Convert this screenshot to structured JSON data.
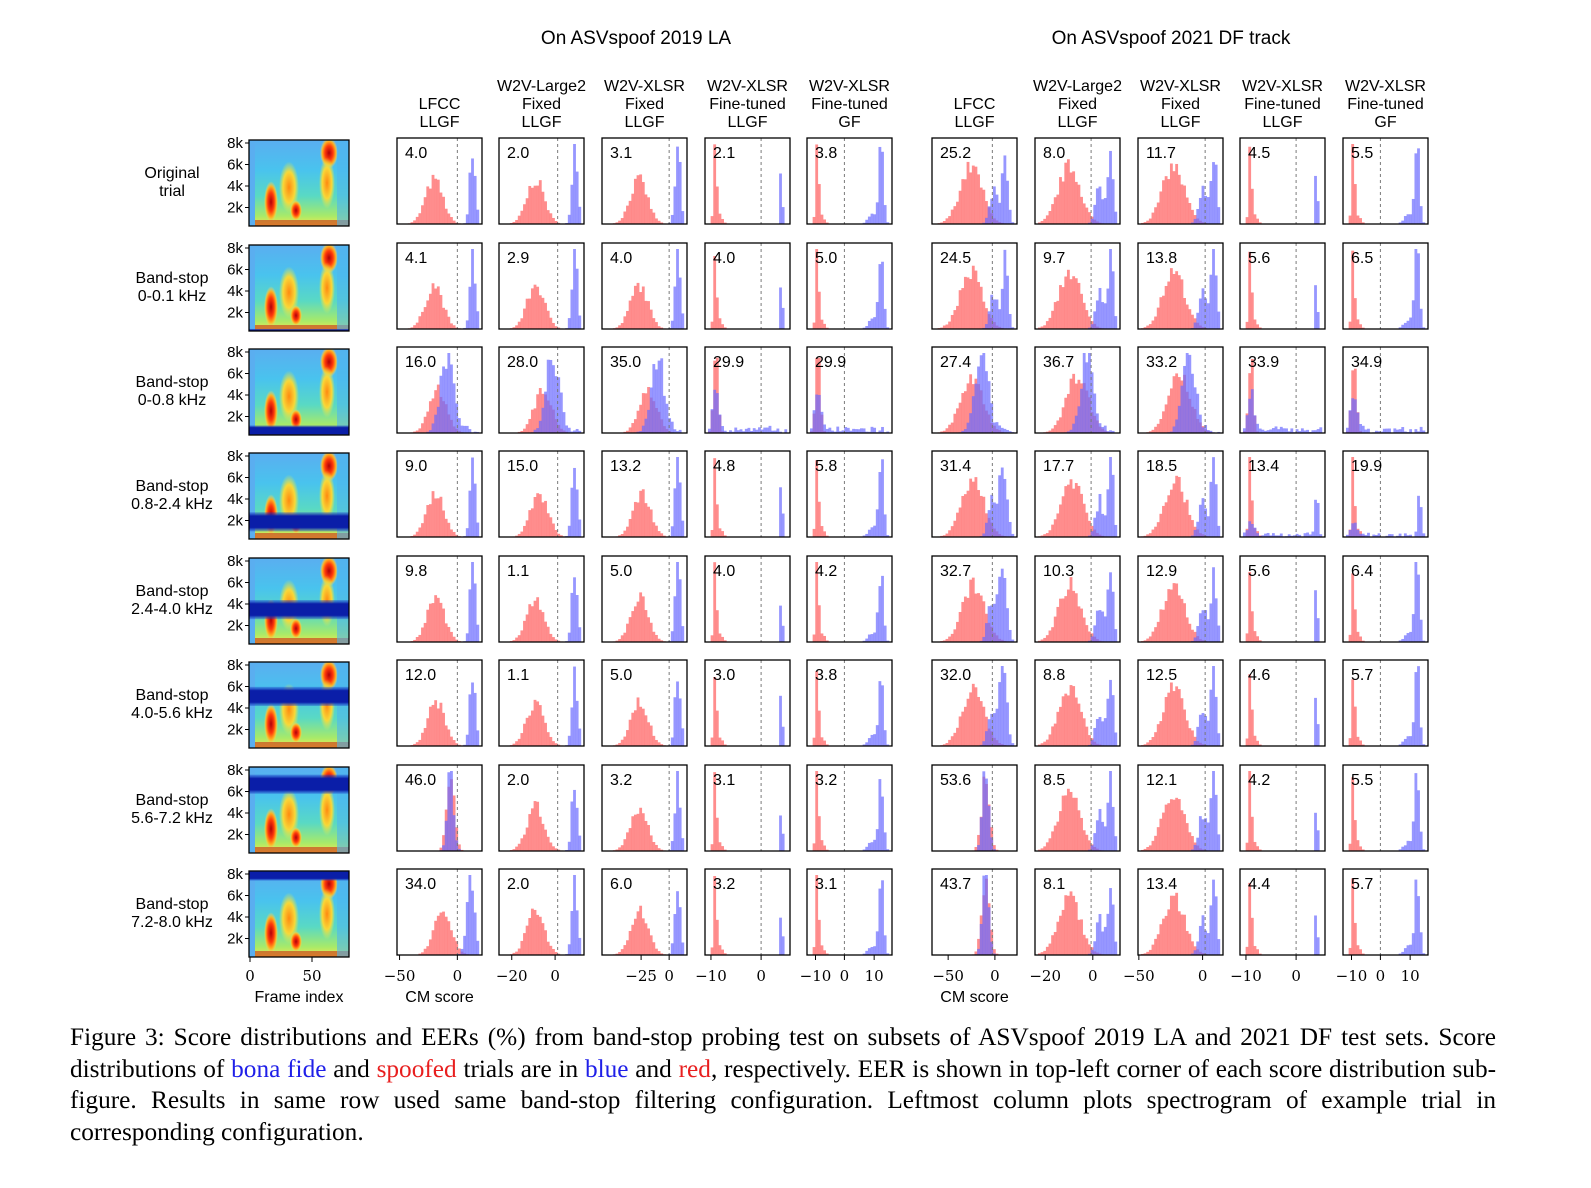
{
  "chart_data": {
    "type": "histogram-grid",
    "groups": [
      {
        "title": "On ASVspoof 2019 LA"
      },
      {
        "title": "On ASVspoof 2021 DF track"
      }
    ],
    "columns": [
      {
        "group": 0,
        "lines": [
          "LFCC",
          "LLGF"
        ],
        "xticks": [
          -50,
          0
        ],
        "xlabel": "CM score"
      },
      {
        "group": 0,
        "lines": [
          "W2V-Large2",
          "Fixed",
          "LLGF"
        ],
        "xticks": [
          -20,
          0
        ],
        "xlabel": ""
      },
      {
        "group": 0,
        "lines": [
          "W2V-XLSR",
          "Fixed",
          "LLGF"
        ],
        "xticks": [
          -25,
          0
        ],
        "xlabel": ""
      },
      {
        "group": 0,
        "lines": [
          "W2V-XLSR",
          "Fine-tuned",
          "LLGF"
        ],
        "xticks": [
          -10,
          0
        ],
        "xlabel": ""
      },
      {
        "group": 0,
        "lines": [
          "W2V-XLSR",
          "Fine-tuned",
          "GF"
        ],
        "xticks": [
          -10,
          0,
          10
        ],
        "xlabel": ""
      },
      {
        "group": 1,
        "lines": [
          "LFCC",
          "LLGF"
        ],
        "xticks": [
          -50,
          0
        ],
        "xlabel": "CM score"
      },
      {
        "group": 1,
        "lines": [
          "W2V-Large2",
          "Fixed",
          "LLGF"
        ],
        "xticks": [
          -20,
          0
        ],
        "xlabel": ""
      },
      {
        "group": 1,
        "lines": [
          "W2V-XLSR",
          "Fixed",
          "LLGF"
        ],
        "xticks": [
          -50,
          0
        ],
        "xlabel": ""
      },
      {
        "group": 1,
        "lines": [
          "W2V-XLSR",
          "Fine-tuned",
          "LLGF"
        ],
        "xticks": [
          -10,
          0
        ],
        "xlabel": ""
      },
      {
        "group": 1,
        "lines": [
          "W2V-XLSR",
          "Fine-tuned",
          "GF"
        ],
        "xticks": [
          -10,
          0,
          10
        ],
        "xlabel": ""
      }
    ],
    "rows": [
      {
        "label": [
          "Original",
          "trial"
        ],
        "eer": [
          "4.0",
          "2.0",
          "3.1",
          "2.1",
          "3.8",
          "25.2",
          "8.0",
          "11.7",
          "4.5",
          "5.5"
        ]
      },
      {
        "label": [
          "Band-stop",
          "0-0.1 kHz"
        ],
        "eer": [
          "4.1",
          "2.9",
          "4.0",
          "4.0",
          "5.0",
          "24.5",
          "9.7",
          "13.8",
          "5.6",
          "6.5"
        ]
      },
      {
        "label": [
          "Band-stop",
          "0-0.8 kHz"
        ],
        "eer": [
          "16.0",
          "28.0",
          "35.0",
          "29.9",
          "29.9",
          "27.4",
          "36.7",
          "33.2",
          "33.9",
          "34.9"
        ]
      },
      {
        "label": [
          "Band-stop",
          "0.8-2.4 kHz"
        ],
        "eer": [
          "9.0",
          "15.0",
          "13.2",
          "4.8",
          "5.8",
          "31.4",
          "17.7",
          "18.5",
          "13.4",
          "19.9"
        ]
      },
      {
        "label": [
          "Band-stop",
          "2.4-4.0 kHz"
        ],
        "eer": [
          "9.8",
          "1.1",
          "5.0",
          "4.0",
          "4.2",
          "32.7",
          "10.3",
          "12.9",
          "5.6",
          "6.4"
        ]
      },
      {
        "label": [
          "Band-stop",
          "4.0-5.6 kHz"
        ],
        "eer": [
          "12.0",
          "1.1",
          "5.0",
          "3.0",
          "3.8",
          "32.0",
          "8.8",
          "12.5",
          "4.6",
          "5.7"
        ]
      },
      {
        "label": [
          "Band-stop",
          "5.6-7.2 kHz"
        ],
        "eer": [
          "46.0",
          "2.0",
          "3.2",
          "3.1",
          "3.2",
          "53.6",
          "8.5",
          "12.1",
          "4.2",
          "5.5"
        ]
      },
      {
        "label": [
          "Band-stop",
          "7.2-8.0 kHz"
        ],
        "eer": [
          "34.0",
          "2.0",
          "6.0",
          "3.2",
          "3.1",
          "43.7",
          "8.1",
          "13.4",
          "4.4",
          "5.7"
        ]
      }
    ],
    "spectrogram": {
      "yticks": [
        "8k",
        "6k",
        "4k",
        "2k"
      ],
      "xticks": [
        "0",
        "50"
      ],
      "xlabel": "Frame index",
      "stopbands_khz": [
        null,
        [
          0,
          0.1
        ],
        [
          0,
          0.8
        ],
        [
          0.8,
          2.4
        ],
        [
          2.4,
          4.0
        ],
        [
          4.0,
          5.6
        ],
        [
          5.6,
          7.2
        ],
        [
          7.2,
          8.0
        ]
      ]
    },
    "colors": {
      "bona_fide": "#6b6bff",
      "spoofed": "#ff7070",
      "overlap": "#7a3ac0"
    }
  },
  "caption": {
    "p1": "Figure 3: Score distributions and EERs (%) from band-stop probing test on subsets of ASVspoof 2019 LA and 2021 DF test sets. Score distributions of ",
    "bona": "bona fide",
    "p2": " and ",
    "spoofed": "spoofed",
    "p3": " trials are in ",
    "blue": "blue",
    "p4": " and ",
    "red": "red",
    "p5": ", respectively. EER is shown in top-left corner of each score distribution sub-figure. Results in same row used same band-stop filtering configuration. Leftmost column plots spectrogram of example trial in corresponding configuration."
  }
}
